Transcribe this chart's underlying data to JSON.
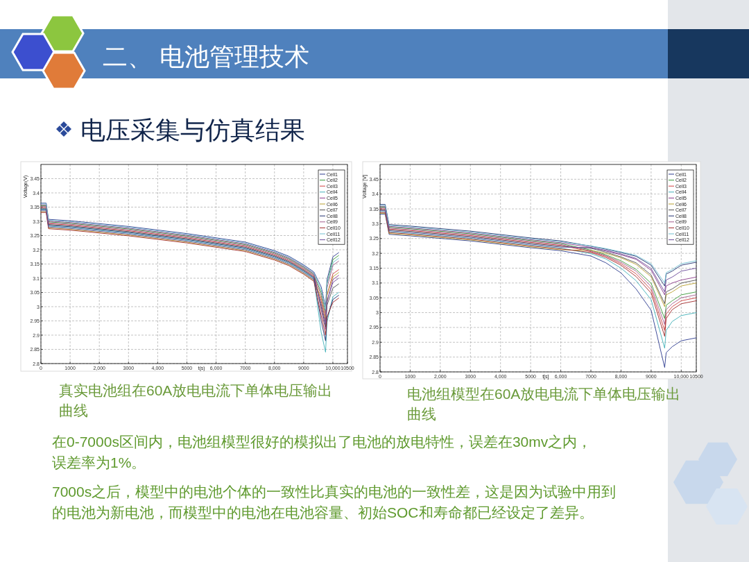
{
  "chart_data": [
    {
      "type": "other",
      "title": "二、 电池管理技术",
      "subtitle": "电压采集与仿真结果",
      "annotations": [
        "在0-7000s区间内，电池组模型很好的模拟出了电池的放电特性，误差在30mv之内，误差率为1%。",
        "7000s之后，模型中的电池个体的一致性比真实的电池的一致性差，这是因为试验中用到的电池为新电池，而模型中的电池在电池容量、初始SOC和寿命都已经设定了差异。"
      ]
    },
    {
      "type": "line",
      "xlabel": "t(s)",
      "ylabel": "Voltage(V)",
      "annotations": [
        "真实电池组在60A放电电流下单体电压输出曲线"
      ],
      "grid": true,
      "legend": "top right",
      "xlim": [
        0,
        10500
      ],
      "ylim": [
        2.8,
        3.5
      ],
      "xticks": [
        0,
        1000,
        {
          "value": 2000,
          "label": "2,000"
        },
        3000,
        {
          "value": 4000,
          "label": "4,000"
        },
        5000,
        {
          "value": 6000,
          "label": "6,000"
        },
        7000,
        {
          "value": 8000,
          "label": "8,000"
        },
        9000,
        {
          "value": 10000,
          "label": "10,000"
        },
        10500
      ],
      "yticks": [
        2.8,
        2.85,
        2.9,
        2.95,
        3,
        3.05,
        3.1,
        3.15,
        3.2,
        3.25,
        3.3,
        3.35,
        3.4,
        3.45
      ],
      "x": [
        0,
        180,
        260,
        1000,
        3000,
        5000,
        7000,
        8000,
        8500,
        9000,
        9350,
        9600,
        9750,
        9800,
        10000,
        10200
      ],
      "series": [
        {
          "name": "Cell1",
          "color": "#2b3a8f",
          "values": [
            3.364,
            3.364,
            3.307,
            3.302,
            3.282,
            3.257,
            3.227,
            3.197,
            3.177,
            3.147,
            3.122,
            3.07,
            3.0,
            3.095,
            3.175,
            3.19
          ]
        },
        {
          "name": "Cell2",
          "color": "#3a9a3a",
          "values": [
            3.355,
            3.355,
            3.298,
            3.293,
            3.273,
            3.248,
            3.218,
            3.188,
            3.168,
            3.138,
            3.113,
            3.05,
            2.98,
            3.08,
            3.165,
            3.18
          ]
        },
        {
          "name": "Cell3",
          "color": "#d04040",
          "values": [
            3.349,
            3.349,
            3.292,
            3.287,
            3.267,
            3.242,
            3.212,
            3.182,
            3.162,
            3.132,
            3.107,
            3.02,
            2.95,
            3.04,
            3.115,
            3.13
          ]
        },
        {
          "name": "Cell4",
          "color": "#40b0b8",
          "values": [
            3.34,
            3.34,
            3.283,
            3.278,
            3.258,
            3.233,
            3.203,
            3.173,
            3.153,
            3.123,
            3.098,
            2.91,
            2.84,
            2.945,
            3.035,
            3.05
          ]
        },
        {
          "name": "Cell5",
          "color": "#8a3a8a",
          "values": [
            3.358,
            3.358,
            3.301,
            3.296,
            3.276,
            3.251,
            3.221,
            3.191,
            3.171,
            3.141,
            3.116,
            2.99,
            2.92,
            3.015,
            3.095,
            3.11
          ]
        },
        {
          "name": "Cell6",
          "color": "#b8a030",
          "values": [
            3.334,
            3.334,
            3.277,
            3.272,
            3.252,
            3.227,
            3.197,
            3.167,
            3.147,
            3.117,
            3.092,
            3.03,
            2.96,
            3.04,
            3.105,
            3.12
          ]
        },
        {
          "name": "Cell7",
          "color": "#505050",
          "values": [
            3.346,
            3.346,
            3.289,
            3.284,
            3.264,
            3.239,
            3.209,
            3.179,
            3.159,
            3.129,
            3.104,
            3.0,
            2.93,
            3.005,
            3.065,
            3.08
          ]
        },
        {
          "name": "Cell8",
          "color": "#1f2f6f",
          "values": [
            3.343,
            3.343,
            3.286,
            3.281,
            3.261,
            3.236,
            3.206,
            3.176,
            3.156,
            3.126,
            3.101,
            2.95,
            2.88,
            2.96,
            3.025,
            3.04
          ]
        },
        {
          "name": "Cell9",
          "color": "#a05a8a",
          "values": [
            3.352,
            3.352,
            3.295,
            3.29,
            3.27,
            3.245,
            3.215,
            3.185,
            3.165,
            3.135,
            3.11,
            3.04,
            2.97,
            3.065,
            3.145,
            3.16
          ]
        },
        {
          "name": "Cell10",
          "color": "#a02828",
          "values": [
            3.331,
            3.331,
            3.274,
            3.269,
            3.249,
            3.224,
            3.194,
            3.164,
            3.144,
            3.114,
            3.089,
            2.97,
            2.9,
            2.965,
            3.015,
            3.03
          ]
        },
        {
          "name": "Cell11",
          "color": "#70c0d0",
          "values": [
            3.361,
            3.361,
            3.304,
            3.299,
            3.279,
            3.254,
            3.224,
            3.194,
            3.174,
            3.144,
            3.119,
            3.06,
            2.99,
            3.08,
            3.155,
            3.17
          ]
        },
        {
          "name": "Cell12",
          "color": "#6a4a9a",
          "values": [
            3.337,
            3.337,
            3.28,
            3.275,
            3.255,
            3.23,
            3.2,
            3.17,
            3.15,
            3.12,
            3.095,
            3.01,
            2.94,
            3.02,
            3.085,
            3.1
          ]
        }
      ]
    },
    {
      "type": "line",
      "xlabel": "t[s]",
      "ylabel": "Voltage [V]",
      "annotations": [
        "电池组模型在60A放电电流下单体电压输出曲线"
      ],
      "grid": true,
      "legend": "top right",
      "xlim": [
        0,
        10500
      ],
      "ylim": [
        2.8,
        3.5
      ],
      "xticks": [
        0,
        1000,
        {
          "value": 2000,
          "label": "2,000"
        },
        3000,
        {
          "value": 4000,
          "label": "4,000"
        },
        5000,
        {
          "value": 6000,
          "label": "6,000"
        },
        7000,
        {
          "value": 8000,
          "label": "8,000"
        },
        9000,
        {
          "value": 10000,
          "label": "10,000"
        },
        10500
      ],
      "yticks": [
        2.8,
        2.85,
        2.9,
        2.95,
        3,
        3.05,
        3.1,
        3.15,
        3.2,
        3.25,
        3.3,
        3.35,
        3.4,
        3.45
      ],
      "x": [
        0,
        170,
        300,
        1000,
        3000,
        5000,
        6000,
        7000,
        7500,
        8000,
        8500,
        9000,
        9450,
        9500,
        9700,
        10000,
        10500
      ],
      "series": [
        {
          "name": "Cell1",
          "color": "#2b3a8f",
          "values": [
            3.332,
            3.332,
            3.264,
            3.259,
            3.242,
            3.219,
            3.209,
            3.191,
            3.168,
            3.134,
            3.08,
            3.008,
            2.815,
            2.865,
            2.885,
            2.905,
            2.915
          ]
        },
        {
          "name": "Cell2",
          "color": "#3a9a3a",
          "values": [
            3.356,
            3.356,
            3.288,
            3.283,
            3.266,
            3.243,
            3.233,
            3.211,
            3.195,
            3.175,
            3.146,
            3.099,
            2.98,
            3.025,
            3.04,
            3.06,
            3.07
          ]
        },
        {
          "name": "Cell3",
          "color": "#d04040",
          "values": [
            3.35,
            3.35,
            3.282,
            3.277,
            3.26,
            3.237,
            3.227,
            3.206,
            3.19,
            3.165,
            3.131,
            3.077,
            2.94,
            2.995,
            3.02,
            3.04,
            3.05
          ]
        },
        {
          "name": "Cell4",
          "color": "#40b0b8",
          "values": [
            3.341,
            3.341,
            3.273,
            3.268,
            3.251,
            3.228,
            3.218,
            3.199,
            3.181,
            3.15,
            3.108,
            3.044,
            2.88,
            2.94,
            2.97,
            2.99,
            3.0
          ]
        },
        {
          "name": "Cell5",
          "color": "#8a3a8a",
          "values": [
            3.359,
            3.359,
            3.291,
            3.286,
            3.269,
            3.246,
            3.236,
            3.22,
            3.208,
            3.195,
            3.18,
            3.143,
            3.06,
            3.09,
            3.1,
            3.11,
            3.12
          ]
        },
        {
          "name": "Cell6",
          "color": "#b8a030",
          "values": [
            3.335,
            3.335,
            3.267,
            3.262,
            3.245,
            3.222,
            3.212,
            3.21,
            3.2,
            3.185,
            3.163,
            3.121,
            3.02,
            3.06,
            3.07,
            3.09,
            3.1
          ]
        },
        {
          "name": "Cell7",
          "color": "#505050",
          "values": [
            3.347,
            3.347,
            3.279,
            3.274,
            3.257,
            3.234,
            3.224,
            3.217,
            3.204,
            3.188,
            3.168,
            3.127,
            3.03,
            3.07,
            3.08,
            3.1,
            3.11
          ]
        },
        {
          "name": "Cell8",
          "color": "#1f2f6f",
          "values": [
            3.365,
            3.365,
            3.297,
            3.292,
            3.275,
            3.252,
            3.242,
            3.224,
            3.214,
            3.203,
            3.19,
            3.16,
            3.09,
            3.13,
            3.14,
            3.16,
            3.17
          ]
        },
        {
          "name": "Cell9",
          "color": "#a05a8a",
          "values": [
            3.353,
            3.353,
            3.285,
            3.28,
            3.263,
            3.24,
            3.23,
            3.208,
            3.192,
            3.17,
            3.14,
            3.088,
            2.96,
            3.01,
            3.03,
            3.05,
            3.06
          ]
        },
        {
          "name": "Cell10",
          "color": "#a02828",
          "values": [
            3.338,
            3.338,
            3.27,
            3.265,
            3.248,
            3.225,
            3.215,
            3.203,
            3.186,
            3.16,
            3.122,
            3.066,
            2.92,
            2.98,
            3.01,
            3.03,
            3.04
          ]
        },
        {
          "name": "Cell11",
          "color": "#70c0d0",
          "values": [
            3.362,
            3.362,
            3.294,
            3.289,
            3.272,
            3.249,
            3.239,
            3.225,
            3.216,
            3.205,
            3.193,
            3.165,
            3.1,
            3.135,
            3.145,
            3.165,
            3.175
          ]
        },
        {
          "name": "Cell12",
          "color": "#6a4a9a",
          "values": [
            3.344,
            3.344,
            3.276,
            3.271,
            3.254,
            3.231,
            3.221,
            3.219,
            3.21,
            3.198,
            3.183,
            3.149,
            3.07,
            3.11,
            3.12,
            3.14,
            3.15
          ]
        }
      ]
    }
  ]
}
